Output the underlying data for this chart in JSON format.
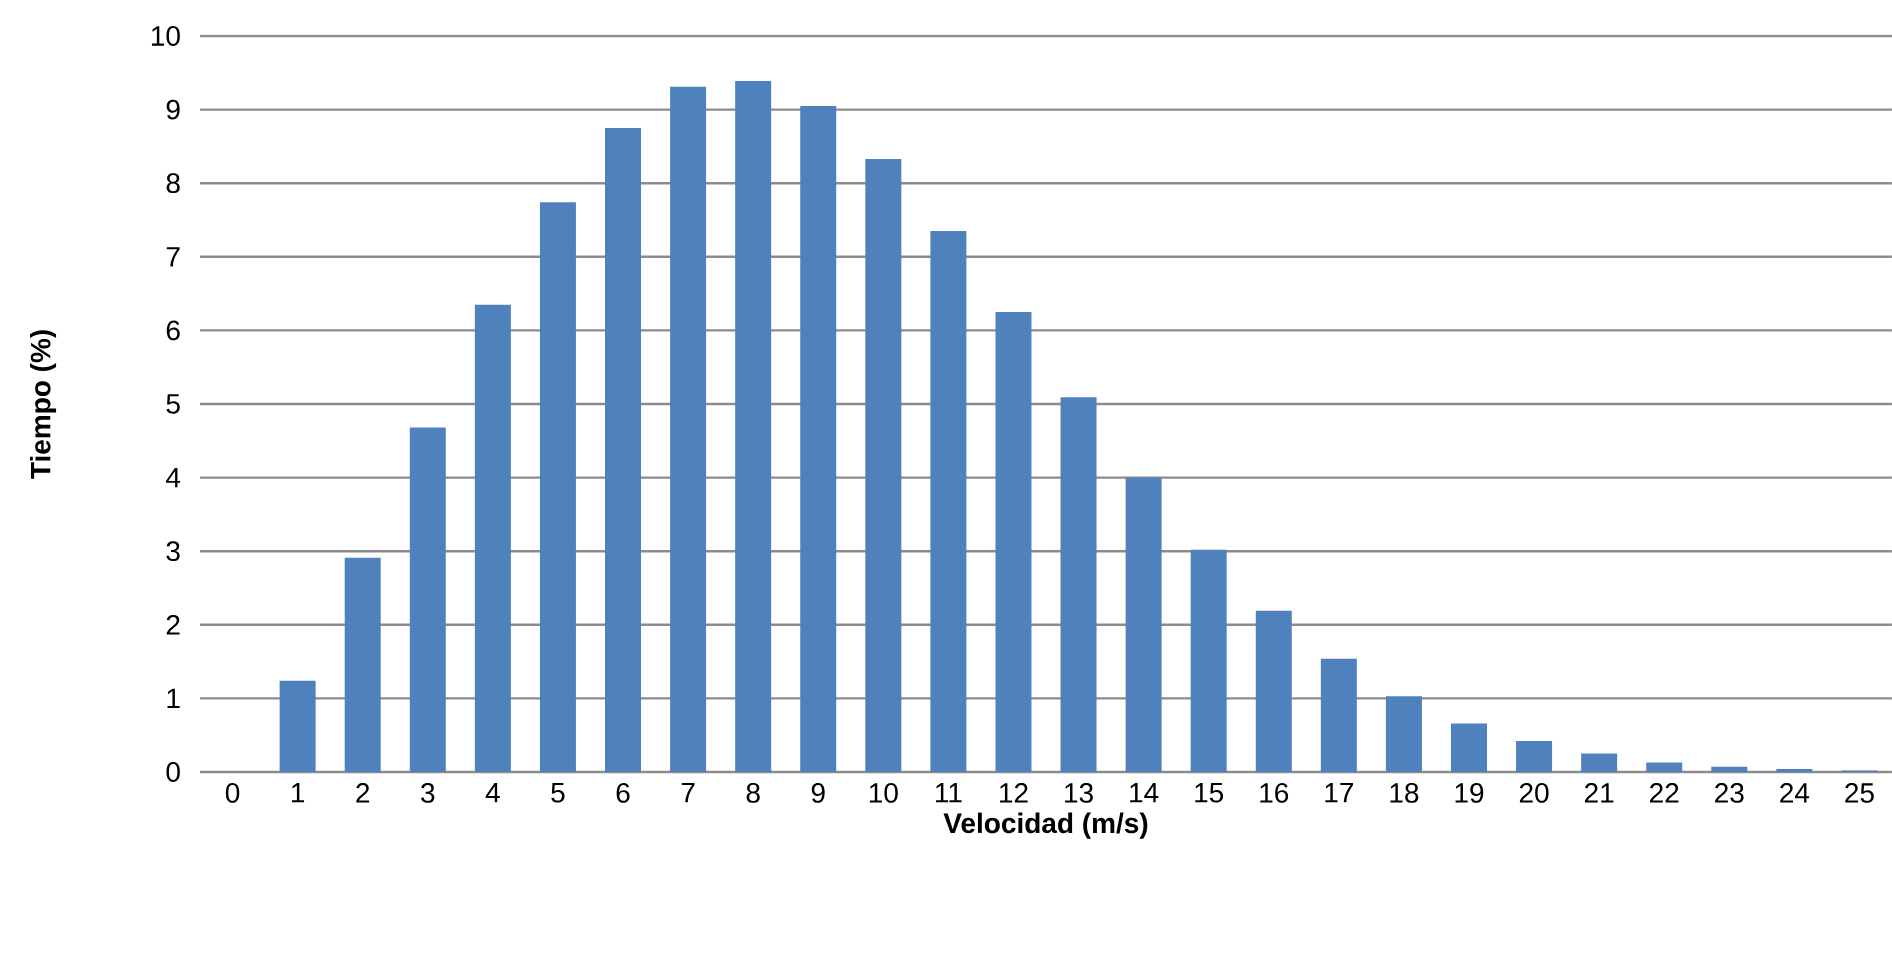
{
  "chart_data": {
    "type": "bar",
    "xlabel": "Velocidad (m/s)",
    "ylabel": "Tiempo (%)",
    "categories": [
      "0",
      "1",
      "2",
      "3",
      "4",
      "5",
      "6",
      "7",
      "8",
      "9",
      "10",
      "11",
      "12",
      "13",
      "14",
      "15",
      "16",
      "17",
      "18",
      "19",
      "20",
      "21",
      "22",
      "23",
      "24",
      "25"
    ],
    "values": [
      0,
      1.24,
      2.91,
      4.68,
      6.35,
      7.74,
      8.75,
      9.31,
      9.39,
      9.05,
      8.33,
      7.35,
      6.25,
      5.09,
      4.0,
      3.02,
      2.19,
      1.54,
      1.03,
      0.66,
      0.42,
      0.25,
      0.13,
      0.07,
      0.04,
      0.02
    ],
    "color": "#4f81bd",
    "ylim": [
      0,
      10
    ],
    "yticks": [
      0,
      1,
      2,
      3,
      4,
      5,
      6,
      7,
      8,
      9,
      10
    ],
    "grid": "y"
  }
}
